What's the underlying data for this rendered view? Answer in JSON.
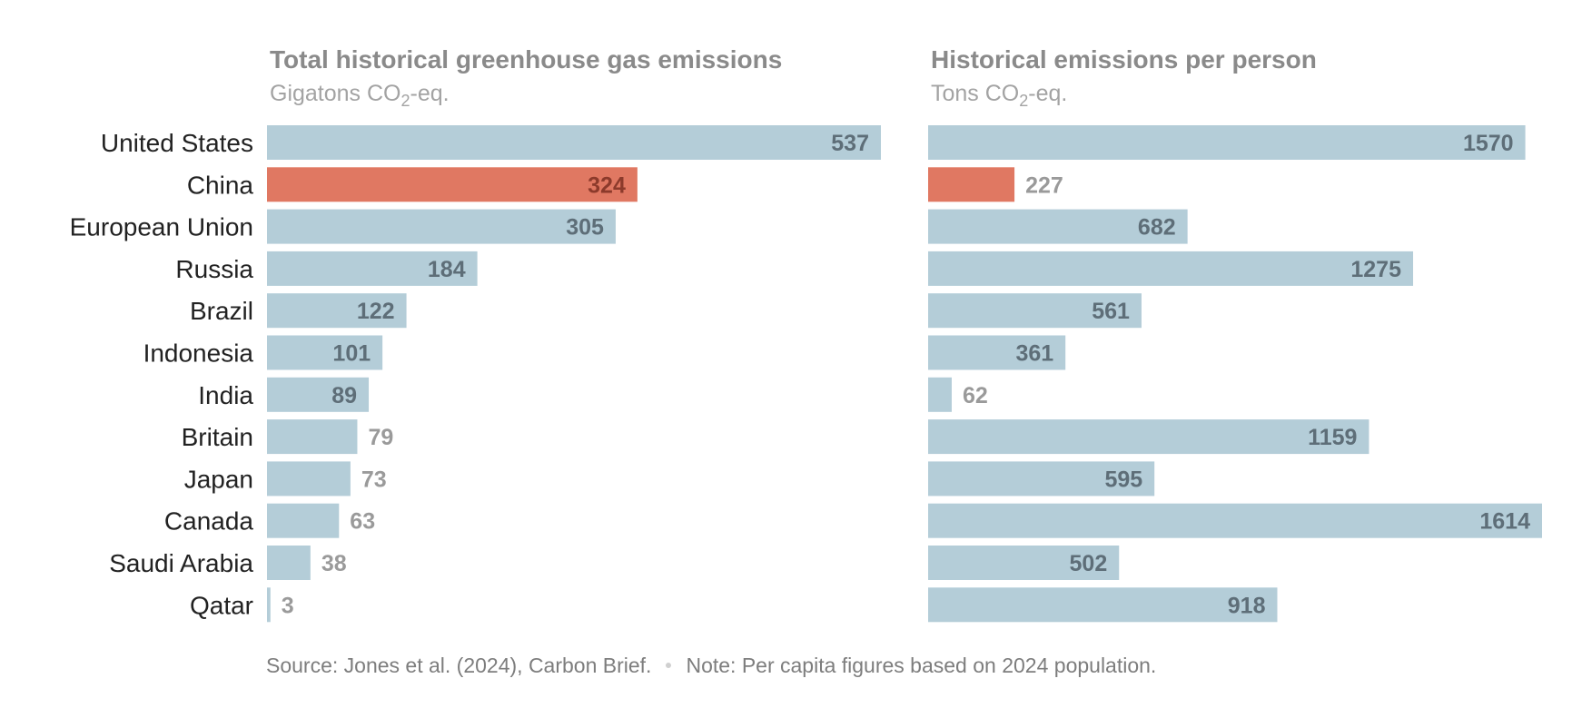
{
  "chart_data": [
    {
      "type": "bar",
      "orientation": "horizontal",
      "title": "Total historical greenhouse gas emissions",
      "subtitle": "Gigatons CO₂-eq.",
      "categories": [
        "United States",
        "China",
        "European Union",
        "Russia",
        "Brazil",
        "Indonesia",
        "India",
        "Britain",
        "Japan",
        "Canada",
        "Saudi Arabia",
        "Qatar"
      ],
      "values": [
        537,
        324,
        305,
        184,
        122,
        101,
        89,
        79,
        73,
        63,
        38,
        3
      ],
      "highlight": "China",
      "xlim": [
        0,
        537
      ],
      "grid": false
    },
    {
      "type": "bar",
      "orientation": "horizontal",
      "title": "Historical emissions per person",
      "subtitle": "Tons CO₂-eq.",
      "categories": [
        "United States",
        "China",
        "European Union",
        "Russia",
        "Brazil",
        "Indonesia",
        "India",
        "Britain",
        "Japan",
        "Canada",
        "Saudi Arabia",
        "Qatar"
      ],
      "values": [
        1570,
        227,
        682,
        1275,
        561,
        361,
        62,
        1159,
        595,
        1614,
        502,
        918
      ],
      "highlight": "China",
      "xlim": [
        0,
        1614
      ],
      "grid": false
    }
  ],
  "colors": {
    "bar": "#b4cdd8",
    "highlight": "#e07862"
  },
  "footer": {
    "source": "Source: Jones et al. (2024), Carbon Brief.",
    "note": "Note: Per capita figures based on 2024 population."
  }
}
